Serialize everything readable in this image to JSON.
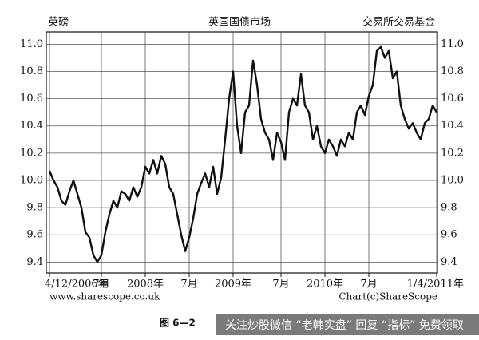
{
  "chart_data": {
    "type": "line",
    "title_left": "英磅",
    "title": "英国国债市场",
    "title_right": "交易所交易基金",
    "source_left": "www.sharescope.co.uk",
    "source_right": "Chart(c)ShareScope",
    "caption": "图 6—2",
    "watermark": "关注炒股微信 “老韩实盘” 回复 “指标” 免费领取",
    "values": [
      10.07,
      10.0,
      9.95,
      9.85,
      9.82,
      9.92,
      10.0,
      9.9,
      9.8,
      9.62,
      9.58,
      9.45,
      9.4,
      9.45,
      9.62,
      9.75,
      9.85,
      9.8,
      9.92,
      9.9,
      9.85,
      9.95,
      9.88,
      9.95,
      10.1,
      10.05,
      10.15,
      10.05,
      10.18,
      10.12,
      9.95,
      9.9,
      9.75,
      9.6,
      9.48,
      9.58,
      9.72,
      9.9,
      9.98,
      10.05,
      9.95,
      10.1,
      9.9,
      10.02,
      10.3,
      10.6,
      10.8,
      10.4,
      10.2,
      10.5,
      10.55,
      10.88,
      10.7,
      10.45,
      10.35,
      10.3,
      10.15,
      10.35,
      10.28,
      10.15,
      10.5,
      10.6,
      10.55,
      10.78,
      10.55,
      10.5,
      10.3,
      10.4,
      10.25,
      10.2,
      10.3,
      10.25,
      10.18,
      10.3,
      10.25,
      10.35,
      10.3,
      10.5,
      10.55,
      10.48,
      10.62,
      10.7,
      10.95,
      10.98,
      10.9,
      10.95,
      10.75,
      10.8,
      10.55,
      10.45,
      10.38,
      10.42,
      10.35,
      10.3,
      10.42,
      10.45,
      10.55,
      10.5
    ],
    "color": "#111111",
    "xlim": [
      -0.8,
      97.2
    ],
    "xticks": [
      {
        "value": 0,
        "label": "4/12/2006年"
      },
      {
        "value": 13,
        "label": "7月"
      },
      {
        "value": 24,
        "label": "2008年"
      },
      {
        "value": 35,
        "label": "7月"
      },
      {
        "value": 46,
        "label": "2009年"
      },
      {
        "value": 58,
        "label": "7月"
      },
      {
        "value": 69,
        "label": "2010年"
      },
      {
        "value": 80,
        "label": "7月"
      },
      {
        "value": 97,
        "label": "1/4/2011年"
      }
    ],
    "ylim": [
      9.32,
      11.09
    ],
    "yticks": [
      9.4,
      9.6,
      9.8,
      {
        "value": 10,
        "label": "10.0"
      },
      10.2,
      10.4,
      10.6,
      10.8,
      {
        "value": 11,
        "label": "11.0"
      }
    ],
    "grid": true
  }
}
